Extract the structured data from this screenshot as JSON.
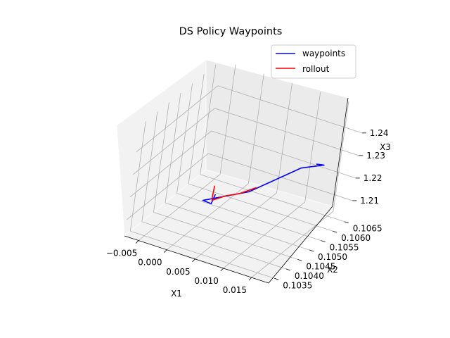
{
  "chart_data": {
    "type": "line3d",
    "title": "DS Policy Waypoints",
    "xlabel": "X1",
    "ylabel": "X2",
    "zlabel": "X3",
    "xticks": [
      "−0.005",
      "0.000",
      "0.005",
      "0.010",
      "0.015"
    ],
    "yticks": [
      "0.1035",
      "0.1040",
      "0.1045",
      "0.1050",
      "0.1055",
      "0.1060",
      "0.1065"
    ],
    "zticks": [
      "1.21",
      "1.22",
      "1.23",
      "1.24"
    ],
    "legend": {
      "placement": "upper-right"
    },
    "grid": true,
    "series": [
      {
        "name": "waypoints",
        "color": "#0000ff",
        "points": [
          [
            0.0034,
            0.10425,
            1.2218
          ],
          [
            0.0036,
            0.10405,
            1.2195
          ],
          [
            0.0023,
            0.104,
            1.2203
          ],
          [
            0.0076,
            0.10465,
            1.223
          ],
          [
            0.0112,
            0.106,
            1.2252
          ],
          [
            0.0134,
            0.10645,
            1.2245
          ],
          [
            0.0125,
            0.10633,
            1.2252
          ]
        ]
      },
      {
        "name": "rollout",
        "color": "#ff0000",
        "points": [
          [
            0.0029,
            0.1043,
            1.2248
          ],
          [
            0.0033,
            0.10415,
            1.2215
          ],
          [
            0.0035,
            0.1041,
            1.2205
          ],
          [
            0.005,
            0.10435,
            1.2217
          ],
          [
            0.0065,
            0.1045,
            1.2225
          ],
          [
            0.0081,
            0.10485,
            1.2236
          ]
        ]
      }
    ]
  }
}
